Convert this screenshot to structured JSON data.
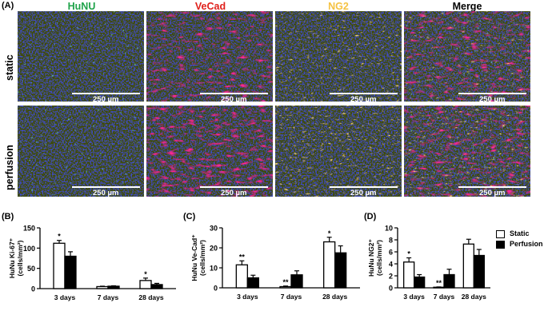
{
  "panel_labels": {
    "a": "(A)",
    "b": "(B)",
    "c": "(C)",
    "d": "(D)"
  },
  "channels": [
    {
      "label": "HuNU",
      "color": "#1fa34a"
    },
    {
      "label": "VeCad",
      "color": "#e0201b"
    },
    {
      "label": "NG2",
      "color": "#f5c242"
    },
    {
      "label": "Merge",
      "color": "#000000"
    }
  ],
  "rows": [
    {
      "label": "static"
    },
    {
      "label": "perfusion"
    }
  ],
  "scale_bar_label": "250 µm",
  "legend": {
    "items": [
      {
        "label": "Static",
        "fill": "#ffffff"
      },
      {
        "label": "Perfusion",
        "fill": "#000000"
      }
    ]
  },
  "chart_data": [
    {
      "type": "bar",
      "panel": "(B)",
      "ylabel": "HuNu Ki-67⁺",
      "ylabel_unit": "(cells/mm²)",
      "categories": [
        "3 days",
        "7 days",
        "28 days"
      ],
      "ylim": [
        0,
        150
      ],
      "yticks": [
        "0",
        "50",
        "100",
        "150"
      ],
      "series": [
        {
          "name": "Static",
          "values": [
            112,
            5,
            20
          ],
          "errors": [
            7,
            1,
            6
          ]
        },
        {
          "name": "Perfusion",
          "values": [
            80,
            6,
            10
          ],
          "errors": [
            11,
            1,
            3
          ]
        }
      ],
      "annotations": [
        "*",
        "",
        "*"
      ]
    },
    {
      "type": "bar",
      "panel": "(C)",
      "ylabel": "HuNu Ve-Cad⁺",
      "ylabel_unit": "(cells/mm²)",
      "categories": [
        "3 days",
        "7 days",
        "28 days"
      ],
      "ylim": [
        0,
        30
      ],
      "yticks": [
        "0",
        "10",
        "20",
        "30"
      ],
      "series": [
        {
          "name": "Static",
          "values": [
            11.5,
            0.6,
            23
          ],
          "errors": [
            2.0,
            0.3,
            2.3
          ]
        },
        {
          "name": "Perfusion",
          "values": [
            5.0,
            6.5,
            17.5
          ],
          "errors": [
            1.3,
            2.0,
            3.5
          ]
        }
      ],
      "annotations": [
        "**",
        "**",
        "*"
      ]
    },
    {
      "type": "bar",
      "panel": "(D)",
      "ylabel": "HuNu NG2⁺",
      "ylabel_unit": "(cells/mm²)",
      "categories": [
        "3 days",
        "7 days",
        "28 days"
      ],
      "ylim": [
        0,
        10
      ],
      "yticks": [
        "0",
        "2",
        "4",
        "6",
        "8",
        "10"
      ],
      "series": [
        {
          "name": "Static",
          "values": [
            4.3,
            0.1,
            7.3
          ],
          "errors": [
            0.7,
            0.05,
            0.8
          ]
        },
        {
          "name": "Perfusion",
          "values": [
            1.8,
            2.2,
            5.4
          ],
          "errors": [
            0.4,
            0.9,
            1.0
          ]
        }
      ],
      "annotations": [
        "*",
        "**",
        ""
      ]
    }
  ]
}
